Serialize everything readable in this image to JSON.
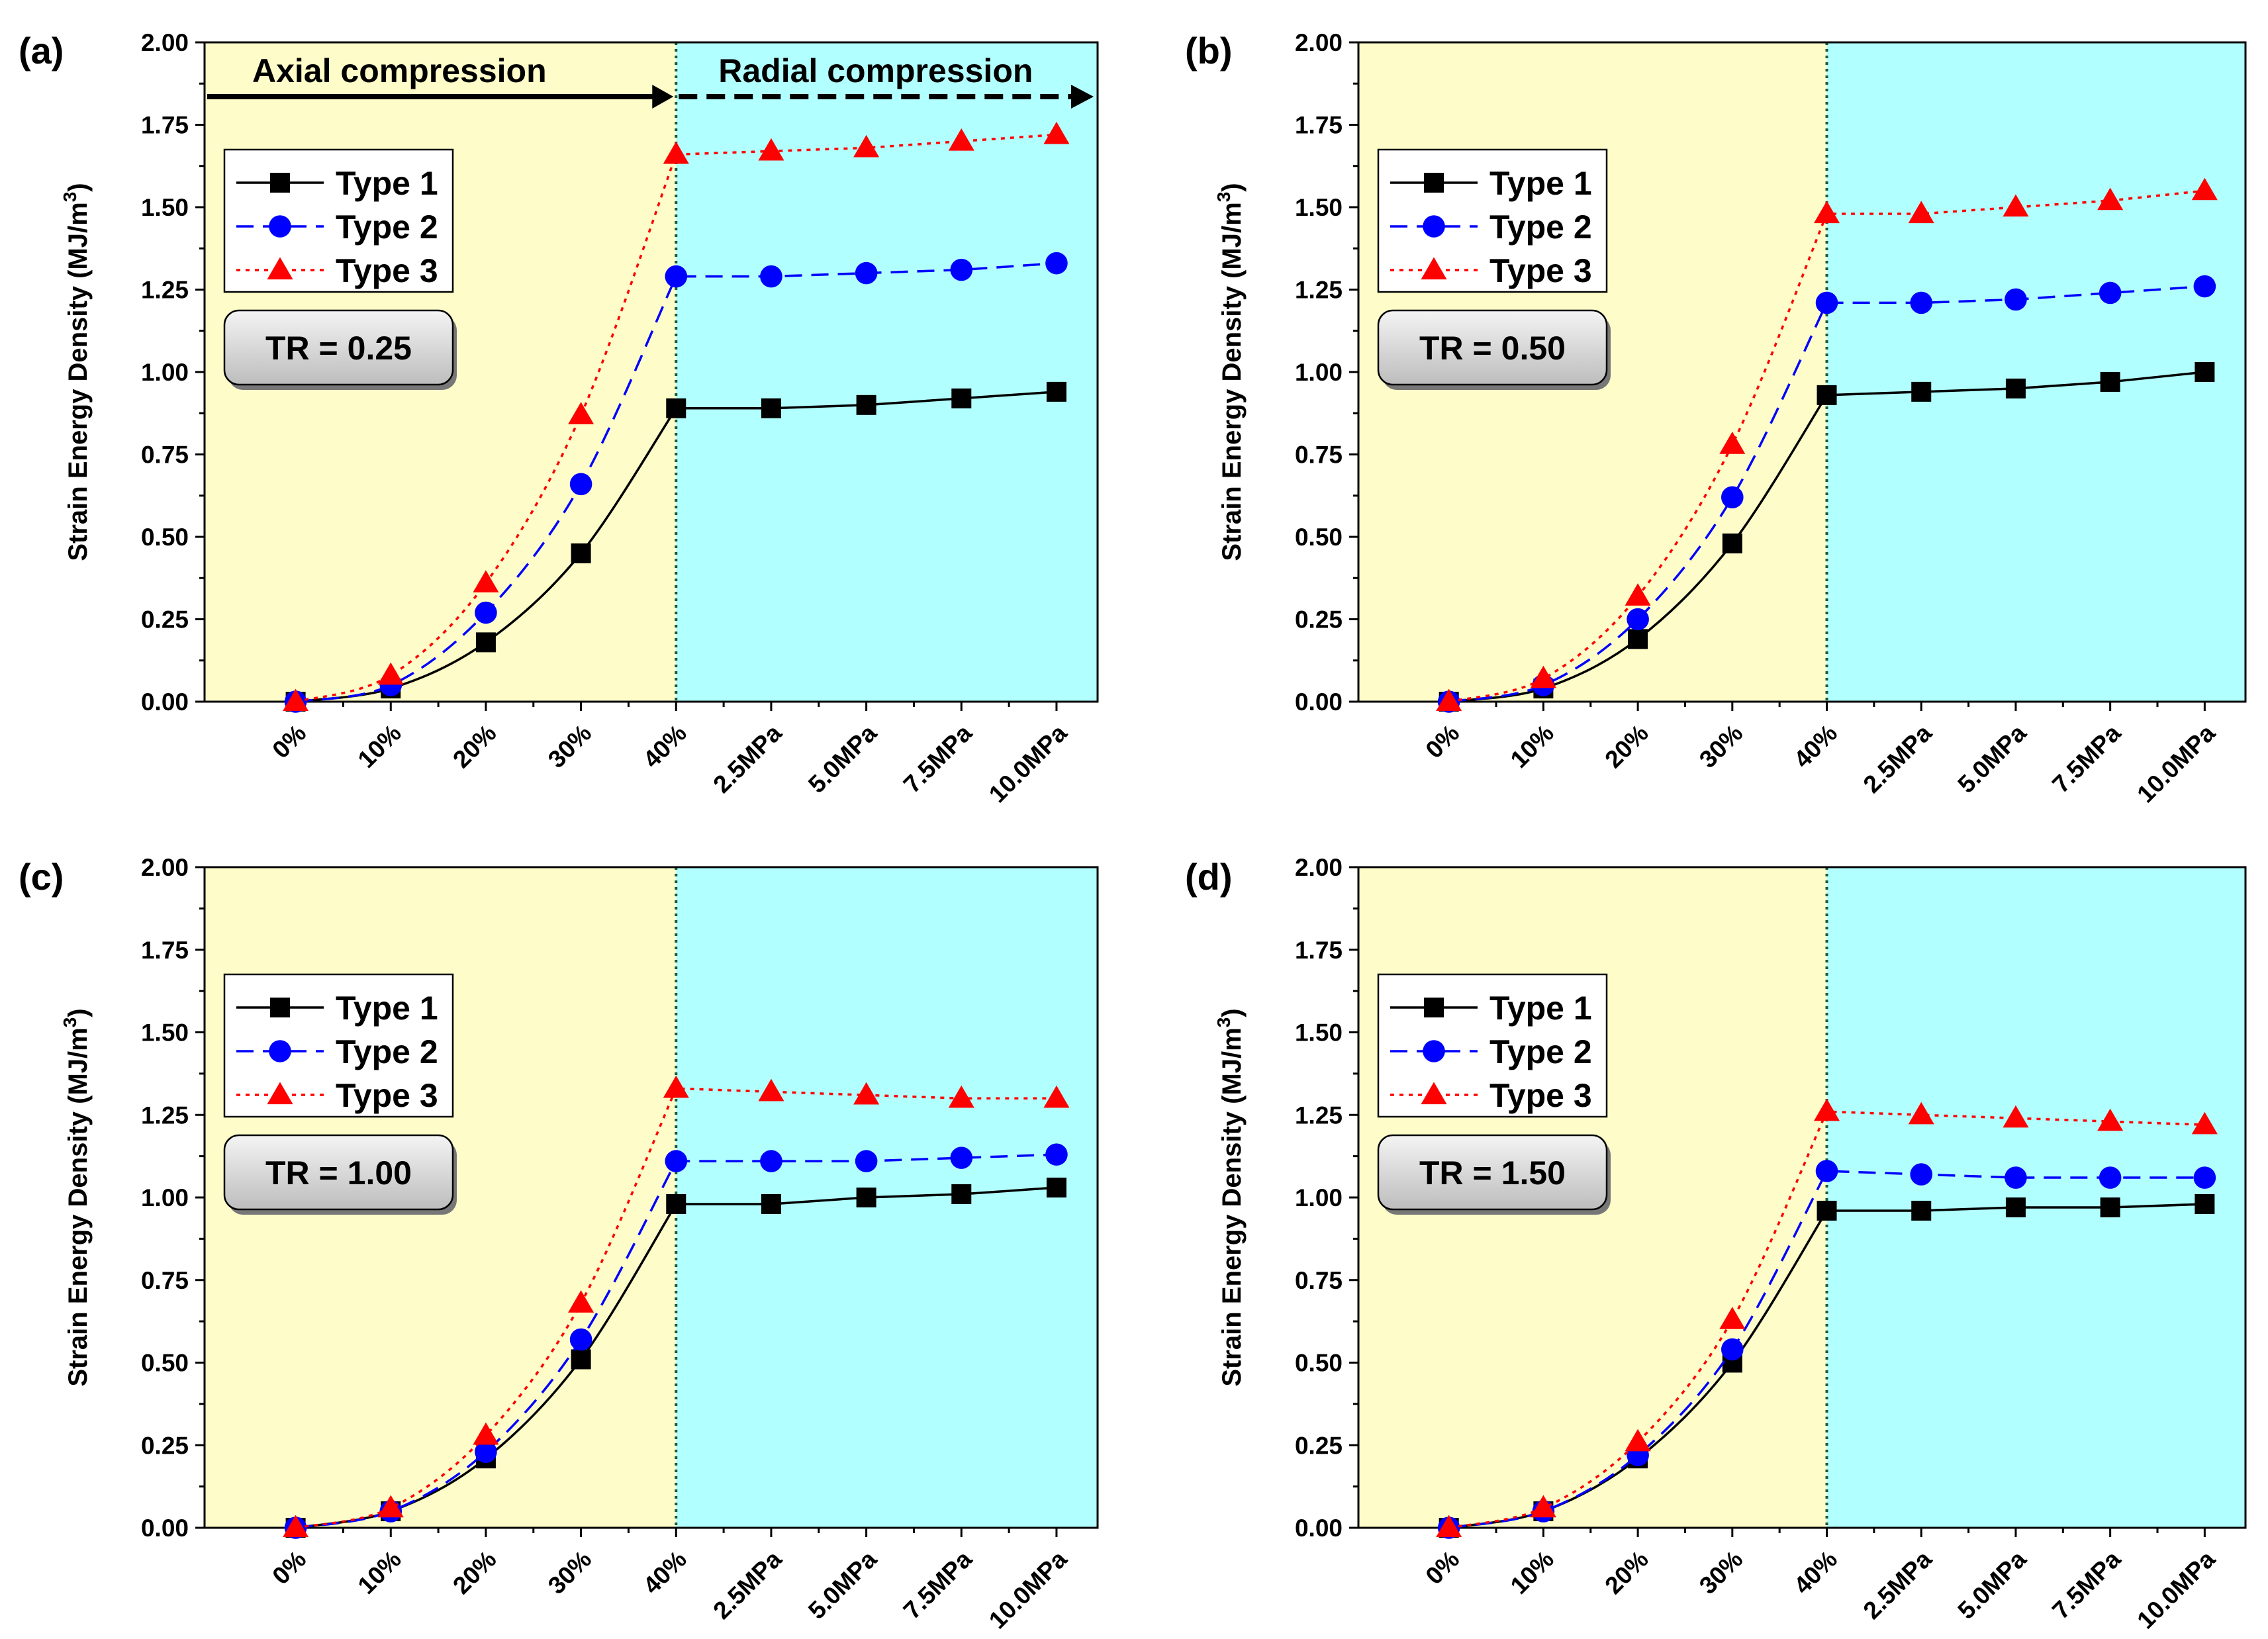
{
  "figure": {
    "region_colors": {
      "axial": "#FEFDC9",
      "radial": "#B2FFFF"
    },
    "series_colors": {
      "Type 1": "#000000",
      "Type 2": "#0000FF",
      "Type 3": "#FF0000"
    },
    "series_markers": {
      "Type 1": "square",
      "Type 2": "circle",
      "Type 3": "triangle"
    },
    "series_dash": {
      "Type 1": "solid",
      "Type 2": "dashed",
      "Type 3": "dotted"
    }
  },
  "chart_data": [
    {
      "type": "line",
      "panel_label": "(a)",
      "tr_label": "TR = 0.25",
      "ylabel": "Strain Energy Density (MJ/m",
      "ylabel_sup": "3",
      "ylabel_close": ")",
      "ylim": [
        0,
        2.0
      ],
      "yticks": [
        "0.00",
        "0.25",
        "0.50",
        "0.75",
        "1.00",
        "1.25",
        "1.50",
        "1.75",
        "2.00"
      ],
      "categories": [
        "0%",
        "10%",
        "20%",
        "30%",
        "40%",
        "2.5MPa",
        "5.0MPa",
        "7.5MPa",
        "10.0MPa"
      ],
      "regions": {
        "axial": "Axial compression",
        "radial": "Radial compression"
      },
      "show_phase_arrows": true,
      "series": [
        {
          "name": "Type 1",
          "values": [
            0.0,
            0.04,
            0.18,
            0.45,
            0.89,
            0.89,
            0.9,
            0.92,
            0.94
          ]
        },
        {
          "name": "Type 2",
          "values": [
            0.0,
            0.05,
            0.27,
            0.66,
            1.29,
            1.29,
            1.3,
            1.31,
            1.33
          ]
        },
        {
          "name": "Type 3",
          "values": [
            0.0,
            0.08,
            0.36,
            0.87,
            1.66,
            1.67,
            1.68,
            1.7,
            1.72
          ]
        }
      ]
    },
    {
      "type": "line",
      "panel_label": "(b)",
      "tr_label": "TR = 0.50",
      "ylabel": "Strain Energy Density (MJ/m",
      "ylabel_sup": "3",
      "ylabel_close": ")",
      "ylim": [
        0,
        2.0
      ],
      "yticks": [
        "0.00",
        "0.25",
        "0.50",
        "0.75",
        "1.00",
        "1.25",
        "1.50",
        "1.75",
        "2.00"
      ],
      "categories": [
        "0%",
        "10%",
        "20%",
        "30%",
        "40%",
        "2.5MPa",
        "5.0MPa",
        "7.5MPa",
        "10.0MPa"
      ],
      "show_phase_arrows": false,
      "series": [
        {
          "name": "Type 1",
          "values": [
            0.0,
            0.04,
            0.19,
            0.48,
            0.93,
            0.94,
            0.95,
            0.97,
            1.0
          ]
        },
        {
          "name": "Type 2",
          "values": [
            0.0,
            0.05,
            0.25,
            0.62,
            1.21,
            1.21,
            1.22,
            1.24,
            1.26
          ]
        },
        {
          "name": "Type 3",
          "values": [
            0.0,
            0.07,
            0.32,
            0.78,
            1.48,
            1.48,
            1.5,
            1.52,
            1.55
          ]
        }
      ]
    },
    {
      "type": "line",
      "panel_label": "(c)",
      "tr_label": "TR = 1.00",
      "ylabel": "Strain Energy Density (MJ/m",
      "ylabel_sup": "3",
      "ylabel_close": ")",
      "ylim": [
        0,
        2.0
      ],
      "yticks": [
        "0.00",
        "0.25",
        "0.50",
        "0.75",
        "1.00",
        "1.25",
        "1.50",
        "1.75",
        "2.00"
      ],
      "categories": [
        "0%",
        "10%",
        "20%",
        "30%",
        "40%",
        "2.5MPa",
        "5.0MPa",
        "7.5MPa",
        "10.0MPa"
      ],
      "show_phase_arrows": false,
      "series": [
        {
          "name": "Type 1",
          "values": [
            0.0,
            0.05,
            0.21,
            0.51,
            0.98,
            0.98,
            1.0,
            1.01,
            1.03
          ]
        },
        {
          "name": "Type 2",
          "values": [
            0.0,
            0.05,
            0.23,
            0.57,
            1.11,
            1.11,
            1.11,
            1.12,
            1.13
          ]
        },
        {
          "name": "Type 3",
          "values": [
            0.0,
            0.06,
            0.28,
            0.68,
            1.33,
            1.32,
            1.31,
            1.3,
            1.3
          ]
        }
      ]
    },
    {
      "type": "line",
      "panel_label": "(d)",
      "tr_label": "TR = 1.50",
      "ylabel": "Strain Energy Density (MJ/m",
      "ylabel_sup": "3",
      "ylabel_close": ")",
      "ylim": [
        0,
        2.0
      ],
      "yticks": [
        "0.00",
        "0.25",
        "0.50",
        "0.75",
        "1.00",
        "1.25",
        "1.50",
        "1.75",
        "2.00"
      ],
      "categories": [
        "0%",
        "10%",
        "20%",
        "30%",
        "40%",
        "2.5MPa",
        "5.0MPa",
        "7.5MPa",
        "10.0MPa"
      ],
      "show_phase_arrows": false,
      "series": [
        {
          "name": "Type 1",
          "values": [
            0.0,
            0.05,
            0.21,
            0.5,
            0.96,
            0.96,
            0.97,
            0.97,
            0.98
          ]
        },
        {
          "name": "Type 2",
          "values": [
            0.0,
            0.05,
            0.22,
            0.54,
            1.08,
            1.07,
            1.06,
            1.06,
            1.06
          ]
        },
        {
          "name": "Type 3",
          "values": [
            0.0,
            0.06,
            0.26,
            0.63,
            1.26,
            1.25,
            1.24,
            1.23,
            1.22
          ]
        }
      ]
    }
  ]
}
